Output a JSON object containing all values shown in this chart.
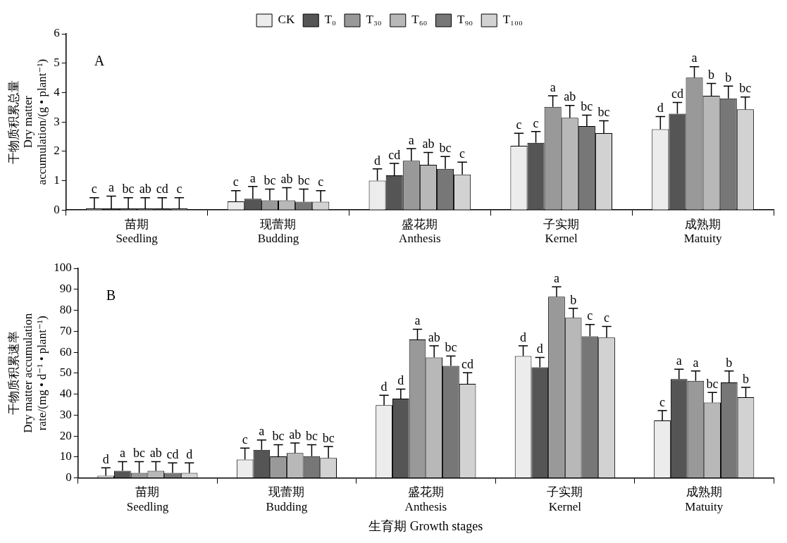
{
  "chart_data": [
    {
      "type": "bar",
      "ylabel": "干物质积累总量\nDry matter\naccumulation/(g • plant⁻¹)",
      "categories": [
        "苗期\nSeedling",
        "现蕾期\nBudding",
        "盛花期\nAnthesis",
        "子实期\nKernel",
        "成熟期\nMatuity"
      ],
      "ylim": [
        0,
        6
      ],
      "yticks": [
        0,
        1,
        2,
        3,
        4,
        5,
        6
      ],
      "grid": false,
      "legend": "top",
      "annotations": [
        "A"
      ],
      "series": [
        {
          "name": "CK",
          "color": "#ececec",
          "values": [
            0.05,
            0.29,
            1.0,
            2.19,
            2.75
          ],
          "errors": [
            [
              0.05,
              0.42
            ],
            [
              0.29,
              0.66
            ],
            [
              1.0,
              1.4
            ],
            [
              2.19,
              2.61
            ],
            [
              2.75,
              3.18
            ]
          ],
          "value_labels": [
            "c",
            "c",
            "d",
            "c",
            "d"
          ]
        },
        {
          "name": "T₀",
          "color": "#555555",
          "values": [
            0.05,
            0.38,
            1.18,
            2.29,
            3.28
          ],
          "errors": [
            [
              0.05,
              0.47
            ],
            [
              0.38,
              0.8
            ],
            [
              1.18,
              1.59
            ],
            [
              2.29,
              2.67
            ],
            [
              3.28,
              3.66
            ]
          ],
          "value_labels": [
            "a",
            "a",
            "cd",
            "c",
            "cd"
          ]
        },
        {
          "name": "T₃₀",
          "color": "#999999",
          "values": [
            0.05,
            0.33,
            1.68,
            3.51,
            4.51
          ],
          "errors": [
            [
              0.05,
              0.42
            ],
            [
              0.33,
              0.71
            ],
            [
              1.68,
              2.09
            ],
            [
              3.51,
              3.89
            ],
            [
              4.51,
              4.88
            ]
          ],
          "value_labels": [
            "bc",
            "bc",
            "a",
            "a",
            "a"
          ]
        },
        {
          "name": "T₆₀",
          "color": "#b8b8b8",
          "values": [
            0.05,
            0.33,
            1.54,
            3.14,
            3.89
          ],
          "errors": [
            [
              0.05,
              0.42
            ],
            [
              0.33,
              0.76
            ],
            [
              1.54,
              1.96
            ],
            [
              3.14,
              3.56
            ],
            [
              3.89,
              4.31
            ]
          ],
          "value_labels": [
            "ab",
            "ab",
            "ab",
            "ab",
            "b"
          ]
        },
        {
          "name": "T₉₀",
          "color": "#777777",
          "values": [
            0.05,
            0.28,
            1.4,
            2.86,
            3.8
          ],
          "errors": [
            [
              0.05,
              0.42
            ],
            [
              0.28,
              0.71
            ],
            [
              1.4,
              1.82
            ],
            [
              2.86,
              3.23
            ],
            [
              3.8,
              4.22
            ]
          ],
          "value_labels": [
            "cd",
            "bc",
            "bc",
            "bc",
            "b"
          ]
        },
        {
          "name": "T₁₀₀",
          "color": "#d2d2d2",
          "values": [
            0.05,
            0.28,
            1.21,
            2.62,
            3.43
          ],
          "errors": [
            [
              0.05,
              0.42
            ],
            [
              0.28,
              0.66
            ],
            [
              1.21,
              1.63
            ],
            [
              2.62,
              3.04
            ],
            [
              3.43,
              3.85
            ]
          ],
          "value_labels": [
            "c",
            "c",
            "c",
            "bc",
            "bc"
          ]
        }
      ]
    },
    {
      "type": "bar",
      "ylabel": "干物质积累速率\nDry matter accumulation\nrate/(mg • d⁻¹ • plant⁻¹)",
      "xlabel": "生育期 Growth stages",
      "categories": [
        "苗期\nSeedling",
        "现蕾期\nBudding",
        "盛花期\nAnthesis",
        "子实期\nKernel",
        "成熟期\nMatuity"
      ],
      "ylim": [
        0,
        100
      ],
      "yticks": [
        0,
        10,
        20,
        30,
        40,
        50,
        60,
        70,
        80,
        90,
        100
      ],
      "grid": false,
      "annotations": [
        "B"
      ],
      "series": [
        {
          "color": "#ececec",
          "values": [
            1,
            8.8,
            34.7,
            58.2,
            27.4
          ],
          "errors": [
            [
              1,
              4.8
            ],
            [
              8.8,
              14.2
            ],
            [
              34.7,
              39.4
            ],
            [
              58.2,
              63.0
            ],
            [
              27.4,
              32.1
            ]
          ],
          "value_labels": [
            "d",
            "c",
            "d",
            "d",
            "c"
          ]
        },
        {
          "color": "#555555",
          "values": [
            3.4,
            13.4,
            37.8,
            52.8,
            47.2
          ],
          "errors": [
            [
              3.4,
              7.8
            ],
            [
              13.4,
              18.1
            ],
            [
              37.8,
              42.4
            ],
            [
              52.8,
              57.5
            ],
            [
              47.2,
              51.9
            ]
          ],
          "value_labels": [
            "a",
            "a",
            "d",
            "d",
            "a"
          ]
        },
        {
          "color": "#999999",
          "values": [
            2.4,
            10.3,
            66.1,
            86.5,
            46.3
          ],
          "errors": [
            [
              2.4,
              7.8
            ],
            [
              10.3,
              15.8
            ],
            [
              66.1,
              70.9
            ],
            [
              86.5,
              91.2
            ],
            [
              46.3,
              51.0
            ]
          ],
          "value_labels": [
            "bc",
            "bc",
            "a",
            "a",
            "a"
          ]
        },
        {
          "color": "#b8b8b8",
          "values": [
            3.4,
            11.9,
            57.5,
            76.4,
            36.0
          ],
          "errors": [
            [
              3.4,
              7.8
            ],
            [
              11.9,
              16.7
            ],
            [
              57.5,
              63.0
            ],
            [
              76.4,
              80.9
            ],
            [
              36.0,
              40.8
            ]
          ],
          "value_labels": [
            "ab",
            "ab",
            "ab",
            "b",
            "bc"
          ]
        },
        {
          "color": "#777777",
          "values": [
            2.4,
            10.4,
            53.5,
            67.6,
            45.6
          ],
          "errors": [
            [
              2.4,
              7.2
            ],
            [
              10.4,
              15.8
            ],
            [
              53.5,
              58.2
            ],
            [
              67.6,
              73.2
            ],
            [
              45.6,
              51.0
            ]
          ],
          "value_labels": [
            "cd",
            "bc",
            "bc",
            "c",
            "b"
          ]
        },
        {
          "color": "#d2d2d2",
          "values": [
            2.4,
            9.5,
            44.9,
            67.0,
            38.5
          ],
          "errors": [
            [
              2.4,
              7.2
            ],
            [
              9.5,
              15.0
            ],
            [
              44.9,
              50.2
            ],
            [
              67.0,
              72.3
            ],
            [
              38.5,
              43.2
            ]
          ],
          "value_labels": [
            "d",
            "bc",
            "cd",
            "c",
            "b"
          ]
        }
      ]
    }
  ]
}
